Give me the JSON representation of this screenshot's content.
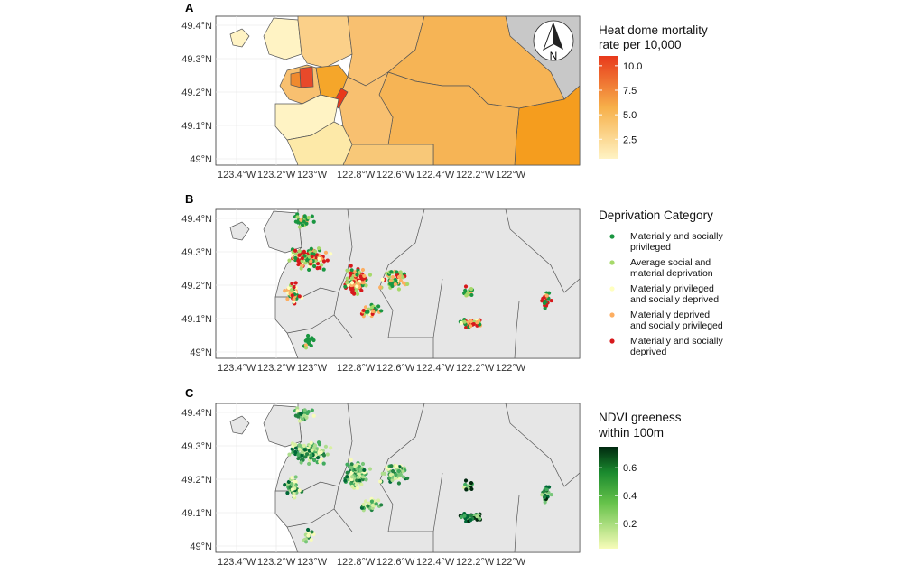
{
  "figure": {
    "x_tick_labels": [
      "123.4°W",
      "123.2°W",
      "123°W",
      "122.8°W",
      "122.6°W",
      "122.4°W",
      "122.2°W",
      "122°W"
    ],
    "y_tick_labels": [
      "49.4°N",
      "49.3°N",
      "49.2°N",
      "49.1°N",
      "49°N"
    ],
    "colors": {
      "land": "#e6e6e6",
      "water": "#ffffff",
      "outside_region": "#c8c8c8",
      "boundary": "#555555",
      "grid": "#ebebeb"
    }
  },
  "panel_a": {
    "letter": "A",
    "north_arrow_label": "N",
    "legend_title_line1": "Heat dome mortality",
    "legend_title_line2": "rate per 10,000",
    "legend_ticks": [
      "10.0",
      "7.5",
      "5.0",
      "2.5"
    ],
    "legend_tick_values": [
      10,
      7.5,
      5,
      2.5
    ],
    "legend_range": [
      0.5,
      11
    ],
    "color_low": "#fff3c4",
    "color_mid": "#f7b04a",
    "color_high": "#e8391b"
  },
  "panel_b": {
    "letter": "B",
    "legend_title": "Deprivation Category",
    "categories": [
      {
        "lines": [
          "Materially and socially",
          "privileged"
        ],
        "color": "#1a9641"
      },
      {
        "lines": [
          "Average social and",
          "material deprivation"
        ],
        "color": "#a6d96a"
      },
      {
        "lines": [
          "Materially privileged",
          "and socially deprived"
        ],
        "color": "#ffffbf"
      },
      {
        "lines": [
          "Materially deprived",
          "and socially privileged"
        ],
        "color": "#fdae61"
      },
      {
        "lines": [
          "Materially and socially",
          "deprived"
        ],
        "color": "#d7191c"
      }
    ]
  },
  "panel_c": {
    "letter": "C",
    "legend_title_line1": "NDVI greeness",
    "legend_title_line2": "within 100m",
    "legend_ticks": [
      "0.6",
      "0.4",
      "0.2"
    ],
    "legend_tick_values": [
      0.6,
      0.4,
      0.2
    ],
    "legend_range": [
      0.02,
      0.75
    ],
    "color_low": "#f7fcb9",
    "color_mid": "#31a354",
    "color_high": "#00280f"
  }
}
